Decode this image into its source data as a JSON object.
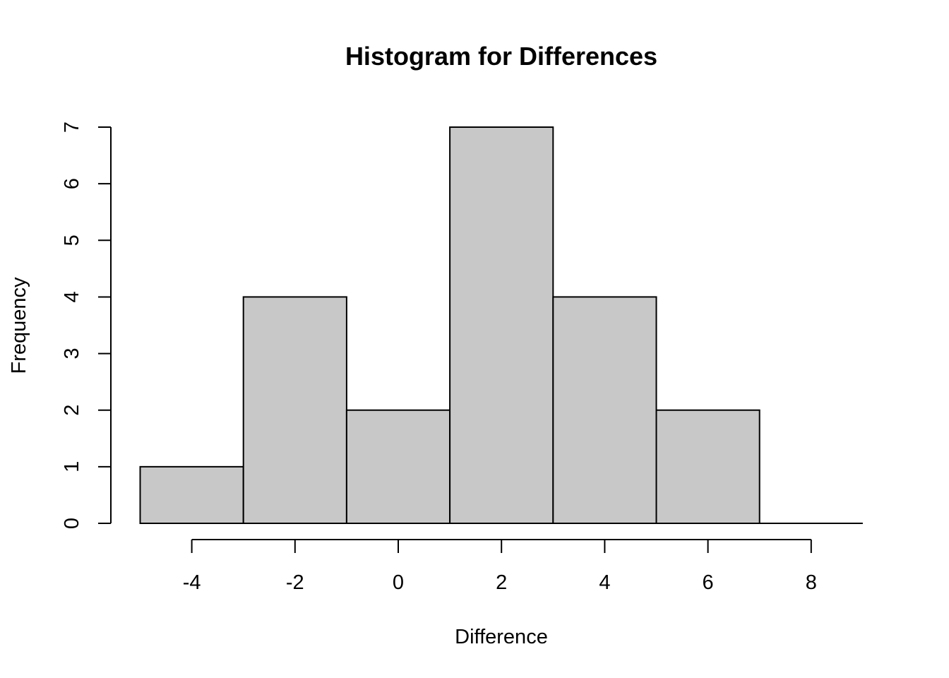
{
  "chart_data": {
    "type": "bar",
    "title": "Histogram for Differences",
    "xlabel": "Difference",
    "ylabel": "Frequency",
    "bins": [
      {
        "from": -5,
        "to": -3,
        "count": 1
      },
      {
        "from": -3,
        "to": -1,
        "count": 4
      },
      {
        "from": -1,
        "to": 1,
        "count": 2
      },
      {
        "from": 1,
        "to": 3,
        "count": 7
      },
      {
        "from": 3,
        "to": 5,
        "count": 4
      },
      {
        "from": 5,
        "to": 7,
        "count": 2
      }
    ],
    "xticks": [
      -4,
      -2,
      0,
      2,
      4,
      6,
      8
    ],
    "yticks": [
      0,
      1,
      2,
      3,
      4,
      5,
      6,
      7
    ],
    "xlim": [
      -5,
      9
    ],
    "ylim": [
      0,
      7
    ],
    "grid": false,
    "bar_color": "#c8c8c8",
    "edge_color": "#000000"
  }
}
